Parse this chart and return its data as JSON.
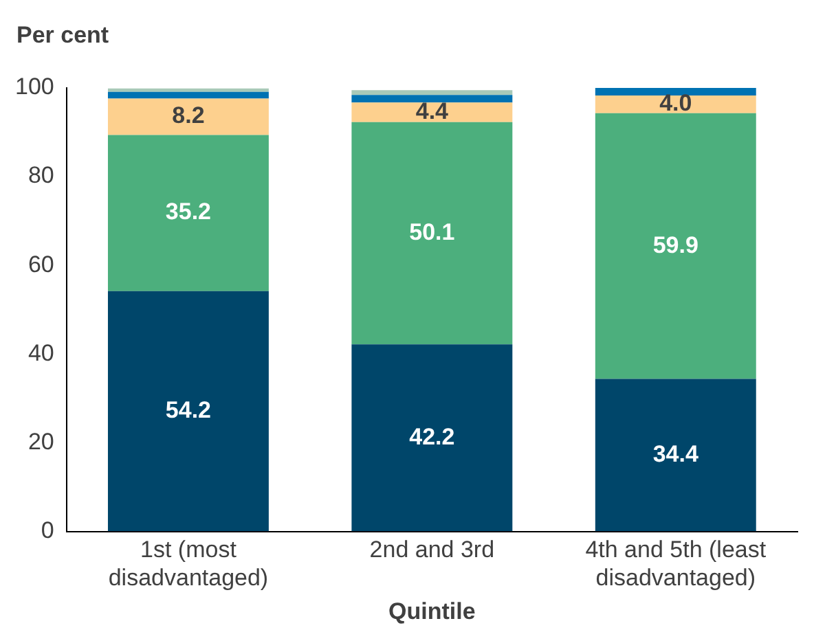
{
  "chart_data": {
    "type": "bar",
    "stacked": true,
    "ylabel": "Per cent",
    "xlabel": "Quintile",
    "categories": [
      "1st (most disadvantaged)",
      "2nd and 3rd",
      "4th and 5th (least disadvantaged)"
    ],
    "series": [
      {
        "color": "#00466a",
        "values": [
          54.2,
          42.2,
          34.4
        ],
        "value_labels": [
          "54.2",
          "42.2",
          "34.4"
        ]
      },
      {
        "color": "#4caf7d",
        "values": [
          35.2,
          50.1,
          59.9
        ],
        "value_labels": [
          "35.2",
          "50.1",
          "59.9"
        ]
      },
      {
        "color": "#fdd08e",
        "values": [
          8.2,
          4.4,
          4.0
        ],
        "value_labels": [
          "8.2",
          "4.4",
          "4.0"
        ]
      },
      {
        "color": "#0072b2",
        "values": [
          1.5,
          1.7,
          1.7
        ]
      },
      {
        "color": "#a8c9b8",
        "values": [
          0.8,
          1.1,
          0
        ]
      }
    ],
    "ylim": [
      0,
      100
    ],
    "yticks": [
      0,
      20,
      40,
      60,
      80,
      100
    ],
    "grid": false,
    "legend": false
  }
}
